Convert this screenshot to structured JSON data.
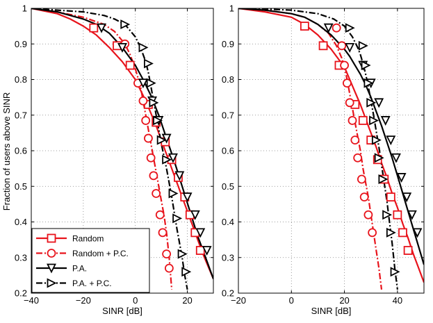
{
  "figure": {
    "ylabel": "Fraction of users above SINR"
  },
  "chart_data": [
    {
      "type": "line",
      "title": "",
      "xlabel": "SINR [dB]",
      "ylabel": "Fraction of users above SINR",
      "xlim": [
        -40,
        30
      ],
      "ylim": [
        0.2,
        1
      ],
      "xticks": [
        "-40",
        "-20",
        "0",
        "20"
      ],
      "yticks": [
        "0.2",
        "0.3",
        "0.4",
        "0.5",
        "0.6",
        "0.7",
        "0.8",
        "0.9",
        "1"
      ],
      "grid": true,
      "legend_position": "bottom-left",
      "series": [
        {
          "name": "Random",
          "color": "#e8131b",
          "dash": "solid",
          "marker": "square",
          "x": [
            -40,
            -30,
            -25,
            -20,
            -15,
            -10,
            -5,
            0,
            2,
            4,
            6,
            8,
            10,
            12,
            14,
            16,
            18,
            20,
            22,
            24,
            26,
            28,
            30
          ],
          "y": [
            1.0,
            0.985,
            0.97,
            0.95,
            0.925,
            0.89,
            0.85,
            0.8,
            0.77,
            0.74,
            0.705,
            0.67,
            0.63,
            0.59,
            0.55,
            0.51,
            0.47,
            0.43,
            0.39,
            0.35,
            0.31,
            0.275,
            0.24
          ],
          "markers_x": [
            -16,
            -7,
            -2,
            5,
            8,
            11.5,
            14,
            16.5,
            19,
            21,
            23,
            25
          ],
          "markers_y": [
            0.945,
            0.895,
            0.84,
            0.73,
            0.68,
            0.625,
            0.575,
            0.525,
            0.47,
            0.42,
            0.37,
            0.32
          ]
        },
        {
          "name": "Random + P.C.",
          "color": "#e8131b",
          "dash": "dashdot",
          "marker": "circle",
          "x": [
            -40,
            -30,
            -20,
            -12,
            -8,
            -4,
            -2,
            0,
            2,
            3,
            4,
            5,
            6,
            7,
            8,
            9,
            10,
            11,
            12,
            13,
            14
          ],
          "y": [
            1.0,
            0.99,
            0.975,
            0.955,
            0.935,
            0.9,
            0.87,
            0.83,
            0.78,
            0.74,
            0.7,
            0.66,
            0.62,
            0.58,
            0.54,
            0.5,
            0.46,
            0.42,
            0.37,
            0.3,
            0.21
          ],
          "markers_x": [
            -4,
            1,
            3,
            4,
            5,
            6,
            7,
            8,
            9.5,
            10.5,
            12,
            13
          ],
          "markers_y": [
            0.9,
            0.79,
            0.74,
            0.685,
            0.635,
            0.58,
            0.53,
            0.48,
            0.42,
            0.37,
            0.31,
            0.27
          ]
        },
        {
          "name": "P.A.",
          "color": "#000000",
          "dash": "solid",
          "marker": "triangle-down",
          "x": [
            -40,
            -30,
            -20,
            -15,
            -10,
            -5,
            0,
            3,
            6,
            9,
            12,
            15,
            18,
            21,
            24,
            27,
            30
          ],
          "y": [
            1.0,
            0.99,
            0.97,
            0.955,
            0.93,
            0.89,
            0.84,
            0.8,
            0.755,
            0.7,
            0.635,
            0.57,
            0.5,
            0.43,
            0.36,
            0.3,
            0.24
          ],
          "markers_x": [
            -13,
            -5,
            3,
            6.5,
            9,
            12,
            14.5,
            17,
            20,
            23,
            25,
            27.5
          ],
          "markers_y": [
            0.945,
            0.89,
            0.79,
            0.74,
            0.685,
            0.635,
            0.58,
            0.53,
            0.47,
            0.42,
            0.37,
            0.32
          ]
        },
        {
          "name": "P.A. + P.C.",
          "color": "#000000",
          "dash": "dashdot",
          "marker": "triangle-right",
          "x": [
            -40,
            -30,
            -20,
            -12,
            -8,
            -4,
            0,
            2,
            4,
            5,
            6,
            7,
            8,
            9,
            10,
            12,
            14,
            16,
            18,
            19,
            20
          ],
          "y": [
            1.0,
            0.995,
            0.99,
            0.98,
            0.97,
            0.955,
            0.92,
            0.89,
            0.85,
            0.82,
            0.78,
            0.74,
            0.7,
            0.66,
            0.62,
            0.55,
            0.47,
            0.38,
            0.3,
            0.25,
            0.21
          ],
          "markers_x": [
            -4,
            3,
            5,
            6,
            7,
            8.5,
            10,
            12,
            14.5,
            16,
            18,
            19.5
          ],
          "markers_y": [
            0.955,
            0.89,
            0.845,
            0.79,
            0.735,
            0.685,
            0.63,
            0.575,
            0.48,
            0.41,
            0.31,
            0.26
          ]
        }
      ]
    },
    {
      "type": "line",
      "title": "",
      "xlabel": "SINR [dB]",
      "ylabel": "",
      "xlim": [
        -20,
        50
      ],
      "ylim": [
        0.2,
        1
      ],
      "xticks": [
        "-20",
        "0",
        "20",
        "40"
      ],
      "yticks": [
        "0.2",
        "0.3",
        "0.4",
        "0.5",
        "0.6",
        "0.7",
        "0.8",
        "0.9",
        "1"
      ],
      "grid": true,
      "legend_position": "none",
      "series": [
        {
          "name": "Random",
          "color": "#e8131b",
          "dash": "solid",
          "marker": "square",
          "x": [
            -20,
            -10,
            0,
            5,
            10,
            15,
            20,
            22,
            24,
            26,
            28,
            30,
            32,
            34,
            36,
            38,
            40,
            42,
            44,
            46,
            48,
            50
          ],
          "y": [
            1.0,
            0.99,
            0.975,
            0.955,
            0.925,
            0.885,
            0.835,
            0.8,
            0.765,
            0.73,
            0.69,
            0.65,
            0.61,
            0.565,
            0.525,
            0.48,
            0.44,
            0.395,
            0.355,
            0.31,
            0.27,
            0.23
          ],
          "markers_x": [
            5,
            12,
            18,
            24,
            27,
            30,
            32.5,
            35,
            37.5,
            40,
            42,
            44
          ],
          "markers_y": [
            0.95,
            0.895,
            0.84,
            0.73,
            0.685,
            0.63,
            0.575,
            0.52,
            0.47,
            0.42,
            0.37,
            0.32
          ]
        },
        {
          "name": "Random + P.C.",
          "color": "#e8131b",
          "dash": "dashdot",
          "marker": "circle",
          "x": [
            -20,
            -10,
            0,
            5,
            10,
            14,
            17,
            19,
            20,
            21,
            22,
            23,
            24,
            25,
            26,
            27,
            28,
            29,
            30,
            31,
            32,
            33,
            34
          ],
          "y": [
            1.0,
            0.995,
            0.985,
            0.975,
            0.955,
            0.93,
            0.895,
            0.86,
            0.835,
            0.8,
            0.76,
            0.72,
            0.68,
            0.64,
            0.6,
            0.55,
            0.51,
            0.47,
            0.42,
            0.37,
            0.32,
            0.27,
            0.21
          ],
          "markers_x": [
            17,
            19,
            20,
            21,
            22,
            23,
            24,
            25,
            26.5,
            27.5,
            29,
            30.5
          ],
          "markers_y": [
            0.945,
            0.895,
            0.84,
            0.79,
            0.735,
            0.685,
            0.63,
            0.58,
            0.52,
            0.47,
            0.42,
            0.37
          ]
        },
        {
          "name": "P.A.",
          "color": "#000000",
          "dash": "solid",
          "marker": "triangle-down",
          "x": [
            -20,
            -10,
            0,
            5,
            10,
            15,
            20,
            22,
            24,
            26,
            28,
            30,
            32,
            34,
            36,
            38,
            40,
            42,
            44,
            46,
            48,
            50
          ],
          "y": [
            1.0,
            0.995,
            0.985,
            0.975,
            0.955,
            0.925,
            0.885,
            0.865,
            0.84,
            0.815,
            0.785,
            0.75,
            0.71,
            0.67,
            0.625,
            0.58,
            0.53,
            0.48,
            0.43,
            0.38,
            0.33,
            0.28
          ],
          "markers_x": [
            14,
            22,
            27,
            30,
            33,
            35.5,
            37.5,
            39.5,
            41.5,
            43.5,
            45.5,
            47.5
          ],
          "markers_y": [
            0.945,
            0.89,
            0.84,
            0.79,
            0.735,
            0.685,
            0.63,
            0.58,
            0.525,
            0.47,
            0.42,
            0.37
          ]
        },
        {
          "name": "P.A. + P.C.",
          "color": "#000000",
          "dash": "dashdot",
          "marker": "triangle-right",
          "x": [
            -20,
            -10,
            0,
            10,
            16,
            20,
            23,
            25,
            26,
            27,
            28,
            29,
            30,
            31,
            32,
            33,
            34,
            35,
            36,
            37,
            38,
            39,
            40
          ],
          "y": [
            1.0,
            0.998,
            0.995,
            0.985,
            0.97,
            0.95,
            0.92,
            0.89,
            0.87,
            0.845,
            0.815,
            0.78,
            0.74,
            0.7,
            0.655,
            0.61,
            0.56,
            0.51,
            0.46,
            0.4,
            0.34,
            0.27,
            0.21
          ],
          "markers_x": [
            22,
            27,
            28,
            29,
            30,
            31,
            32,
            33,
            34.5,
            36,
            37.5,
            39
          ],
          "markers_y": [
            0.945,
            0.895,
            0.84,
            0.79,
            0.735,
            0.685,
            0.63,
            0.58,
            0.52,
            0.42,
            0.37,
            0.26
          ]
        }
      ]
    }
  ]
}
